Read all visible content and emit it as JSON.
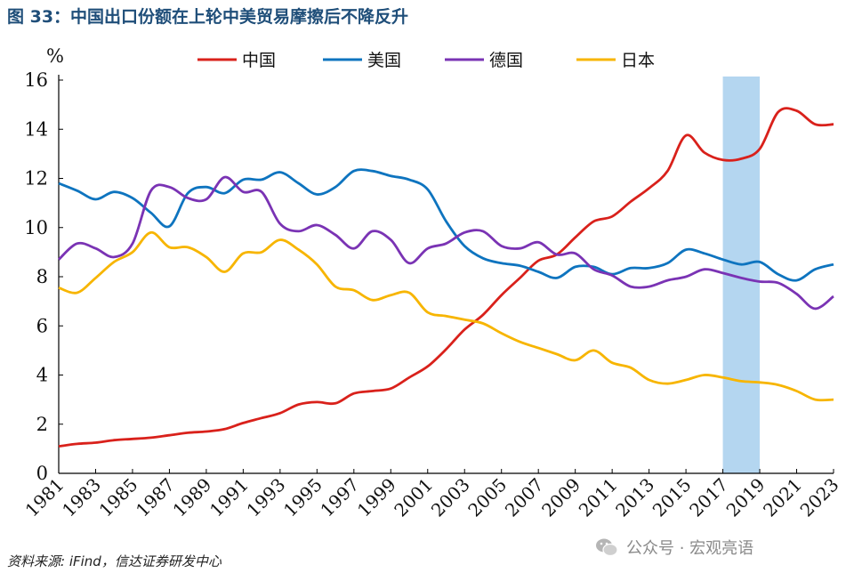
{
  "title": "图 33：中国出口份额在上轮中美贸易摩擦后不降反升",
  "source": "资料来源: iFind，信达证券研发中心",
  "watermark": "公众号 · 宏观亮语",
  "chart_data": {
    "type": "line",
    "ylabel": "%",
    "ylim": [
      0,
      16
    ],
    "yticks": [
      0,
      2,
      4,
      6,
      8,
      10,
      12,
      14,
      16
    ],
    "xlim": [
      1981,
      2023
    ],
    "xticks": [
      1981,
      1983,
      1985,
      1987,
      1989,
      1991,
      1993,
      1995,
      1997,
      1999,
      2001,
      2003,
      2005,
      2007,
      2009,
      2011,
      2013,
      2015,
      2017,
      2019,
      2021,
      2023
    ],
    "x": [
      1981,
      1982,
      1983,
      1984,
      1985,
      1986,
      1987,
      1988,
      1989,
      1990,
      1991,
      1992,
      1993,
      1994,
      1995,
      1996,
      1997,
      1998,
      1999,
      2000,
      2001,
      2002,
      2003,
      2004,
      2005,
      2006,
      2007,
      2008,
      2009,
      2010,
      2011,
      2012,
      2013,
      2014,
      2015,
      2016,
      2017,
      2018,
      2019,
      2020,
      2021,
      2022,
      2023
    ],
    "highlight": {
      "x_start": 2017,
      "x_end": 2019,
      "color": "#b4d6f0"
    },
    "series": [
      {
        "name": "中国",
        "color": "#d9211b",
        "values": [
          1.1,
          1.2,
          1.25,
          1.35,
          1.4,
          1.45,
          1.55,
          1.65,
          1.7,
          1.8,
          2.05,
          2.25,
          2.45,
          2.8,
          2.9,
          2.85,
          3.25,
          3.35,
          3.45,
          3.9,
          4.35,
          5.05,
          5.85,
          6.45,
          7.25,
          7.95,
          8.65,
          8.9,
          9.6,
          10.25,
          10.45,
          11.05,
          11.6,
          12.3,
          13.75,
          13.05,
          12.75,
          12.8,
          13.2,
          14.7,
          14.75,
          14.2,
          14.2
        ]
      },
      {
        "name": "美国",
        "color": "#0e74bf",
        "values": [
          11.8,
          11.5,
          11.15,
          11.45,
          11.2,
          10.6,
          10.05,
          11.4,
          11.65,
          11.4,
          11.95,
          11.95,
          12.25,
          11.8,
          11.35,
          11.65,
          12.3,
          12.3,
          12.1,
          11.95,
          11.55,
          10.25,
          9.25,
          8.75,
          8.55,
          8.45,
          8.2,
          7.95,
          8.4,
          8.4,
          8.1,
          8.35,
          8.35,
          8.55,
          9.1,
          8.95,
          8.7,
          8.5,
          8.6,
          8.1,
          7.85,
          8.3,
          8.5
        ]
      },
      {
        "name": "德国",
        "color": "#7a33b4",
        "values": [
          8.7,
          9.35,
          9.15,
          8.8,
          9.35,
          11.5,
          11.65,
          11.2,
          11.15,
          12.05,
          11.45,
          11.45,
          10.15,
          9.85,
          10.1,
          9.7,
          9.15,
          9.85,
          9.5,
          8.55,
          9.15,
          9.35,
          9.8,
          9.85,
          9.25,
          9.15,
          9.4,
          8.9,
          8.95,
          8.3,
          8.05,
          7.6,
          7.6,
          7.85,
          8.0,
          8.3,
          8.15,
          7.95,
          7.8,
          7.75,
          7.3,
          6.7,
          7.2
        ]
      },
      {
        "name": "日本",
        "color": "#f7b500",
        "values": [
          7.55,
          7.35,
          7.95,
          8.6,
          9.0,
          9.8,
          9.2,
          9.2,
          8.8,
          8.2,
          8.95,
          9.0,
          9.5,
          9.1,
          8.5,
          7.6,
          7.45,
          7.05,
          7.25,
          7.35,
          6.55,
          6.4,
          6.25,
          6.1,
          5.7,
          5.35,
          5.1,
          4.85,
          4.6,
          5.0,
          4.5,
          4.3,
          3.8,
          3.65,
          3.8,
          4.0,
          3.9,
          3.75,
          3.7,
          3.6,
          3.35,
          3.0,
          3.0
        ]
      }
    ]
  }
}
